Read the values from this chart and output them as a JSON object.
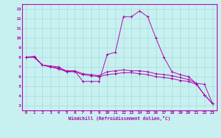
{
  "xlabel": "Windchill (Refroidissement éolien,°C)",
  "bg_color": "#c8f0f0",
  "line_color": "#aa00aa",
  "grid_color": "#aadddd",
  "xlim": [
    -0.5,
    23.5
  ],
  "ylim": [
    2.5,
    13.5
  ],
  "xticks": [
    0,
    1,
    2,
    3,
    4,
    5,
    6,
    7,
    8,
    9,
    10,
    11,
    12,
    13,
    14,
    15,
    16,
    17,
    18,
    19,
    20,
    21,
    22,
    23
  ],
  "yticks": [
    3,
    4,
    5,
    6,
    7,
    8,
    9,
    10,
    11,
    12,
    13
  ],
  "series": [
    {
      "x": [
        0,
        1,
        2,
        3,
        4,
        5,
        6,
        7,
        8,
        9,
        10,
        11,
        12,
        13,
        14,
        15,
        16,
        17,
        18,
        19,
        20,
        21,
        22,
        23
      ],
      "y": [
        8,
        8.1,
        7.2,
        7.1,
        7.0,
        6.5,
        6.6,
        5.5,
        5.5,
        5.5,
        8.3,
        8.5,
        12.2,
        12.2,
        12.8,
        12.2,
        10.0,
        8.0,
        6.5,
        6.2,
        6.0,
        5.3,
        4.1,
        3.2
      ]
    },
    {
      "x": [
        0,
        1,
        2,
        3,
        4,
        5,
        6,
        7,
        8,
        9,
        10,
        11,
        12,
        13,
        14,
        15,
        16,
        17,
        18,
        19,
        20,
        21,
        22,
        23
      ],
      "y": [
        8,
        8.0,
        7.2,
        7.0,
        6.9,
        6.6,
        6.6,
        6.3,
        6.2,
        6.1,
        6.5,
        6.6,
        6.7,
        6.6,
        6.6,
        6.5,
        6.3,
        6.2,
        6.1,
        5.9,
        5.7,
        5.3,
        5.2,
        3.2
      ]
    },
    {
      "x": [
        0,
        1,
        2,
        3,
        4,
        5,
        6,
        7,
        8,
        9,
        10,
        11,
        12,
        13,
        14,
        15,
        16,
        17,
        18,
        19,
        20,
        21,
        22,
        23
      ],
      "y": [
        8.0,
        8.0,
        7.2,
        7.0,
        6.8,
        6.5,
        6.5,
        6.2,
        6.1,
        6.0,
        6.2,
        6.3,
        6.4,
        6.4,
        6.3,
        6.2,
        6.0,
        5.9,
        5.8,
        5.6,
        5.5,
        5.2,
        4.1,
        3.2
      ]
    }
  ]
}
